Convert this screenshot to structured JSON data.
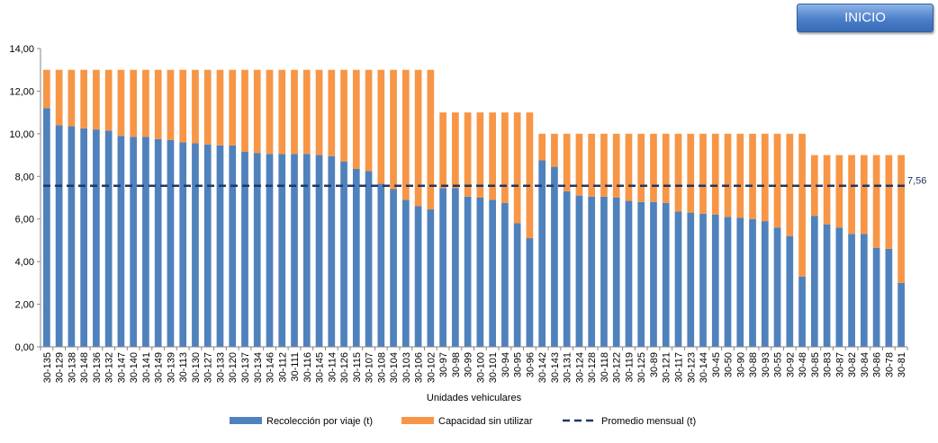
{
  "inicio_button": {
    "label": "INICIO"
  },
  "chart_data": {
    "type": "bar",
    "stacked": true,
    "xlabel": "Unidades vehiculares",
    "ylabel": "",
    "ylim": [
      0,
      14
    ],
    "yticks": [
      "0,00",
      "2,00",
      "4,00",
      "6,00",
      "8,00",
      "10,00",
      "12,00",
      "14,00"
    ],
    "categories": [
      "30-135",
      "30-129",
      "30-138",
      "30-148",
      "30-136",
      "30-132",
      "30-147",
      "30-140",
      "30-141",
      "30-149",
      "30-139",
      "30-113",
      "30-130",
      "30-127",
      "30-133",
      "30-120",
      "30-137",
      "30-134",
      "30-146",
      "30-112",
      "30-111",
      "30-116",
      "30-145",
      "30-114",
      "30-126",
      "30-115",
      "30-107",
      "30-108",
      "30-104",
      "30-103",
      "30-106",
      "30-102",
      "30-97",
      "30-98",
      "30-99",
      "30-100",
      "30-101",
      "30-94",
      "30-95",
      "30-96",
      "30-142",
      "30-143",
      "30-131",
      "30-124",
      "30-128",
      "30-118",
      "30-122",
      "30-119",
      "30-125",
      "30-89",
      "30-121",
      "30-117",
      "30-123",
      "30-144",
      "30-45",
      "30-50",
      "30-90",
      "30-88",
      "30-93",
      "30-55",
      "30-92",
      "30-48",
      "30-85",
      "30-83",
      "30-87",
      "30-82",
      "30-84",
      "30-86",
      "30-78",
      "30-81"
    ],
    "series": [
      {
        "name": "Recolección por viaje (t)",
        "color": "#4f81bd",
        "values": [
          11.2,
          10.4,
          10.35,
          10.25,
          10.2,
          10.15,
          9.9,
          9.85,
          9.85,
          9.75,
          9.7,
          9.6,
          9.55,
          9.5,
          9.45,
          9.45,
          9.15,
          9.1,
          9.05,
          9.05,
          9.05,
          9.05,
          9.0,
          8.95,
          8.7,
          8.35,
          8.25,
          7.65,
          7.4,
          6.9,
          6.6,
          6.45,
          7.45,
          7.45,
          7.05,
          7.0,
          6.9,
          6.75,
          5.8,
          5.1,
          8.75,
          8.45,
          7.3,
          7.1,
          7.05,
          7.05,
          7.0,
          6.85,
          6.8,
          6.8,
          6.75,
          6.35,
          6.3,
          6.25,
          6.2,
          6.1,
          6.05,
          6.0,
          5.9,
          5.6,
          5.2,
          3.3,
          6.15,
          5.75,
          5.6,
          5.3,
          5.3,
          4.65,
          4.6,
          3.0
        ]
      },
      {
        "name": "Capacidad sin utilizar",
        "color": "#f79646",
        "values": [
          1.8,
          2.6,
          2.65,
          2.75,
          2.8,
          2.85,
          3.1,
          3.15,
          3.15,
          3.25,
          3.3,
          3.4,
          3.45,
          3.5,
          3.55,
          3.55,
          3.85,
          3.9,
          3.95,
          3.95,
          3.95,
          3.95,
          4.0,
          4.05,
          4.3,
          4.65,
          4.75,
          5.35,
          5.6,
          6.1,
          6.4,
          6.55,
          3.55,
          3.55,
          3.95,
          4.0,
          4.1,
          4.25,
          5.2,
          5.9,
          1.25,
          1.55,
          2.7,
          2.9,
          2.95,
          2.95,
          3.0,
          3.15,
          3.2,
          3.2,
          3.25,
          3.65,
          3.7,
          3.75,
          3.8,
          3.9,
          3.95,
          4.0,
          4.1,
          4.4,
          4.8,
          6.7,
          2.85,
          3.25,
          3.4,
          3.7,
          3.7,
          4.35,
          4.4,
          6.0
        ]
      }
    ],
    "average": {
      "name": "Promedio mensual (t)",
      "value": 7.56,
      "label": "7,56",
      "color": "#1f3864",
      "style": "dashed"
    },
    "legend_position": "bottom",
    "grid": false
  }
}
